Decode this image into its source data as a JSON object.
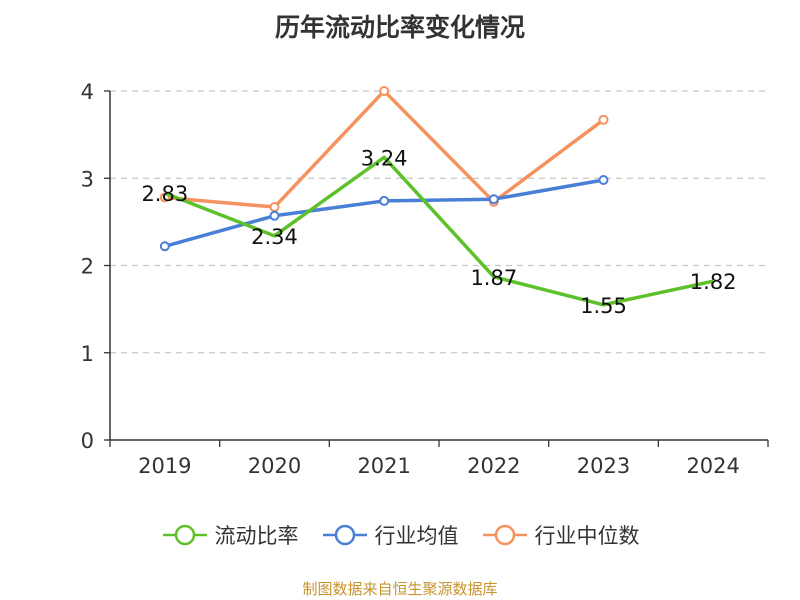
{
  "chart_data": {
    "type": "line",
    "title": "历年流动比率变化情况",
    "categories": [
      "2019",
      "2020",
      "2021",
      "2022",
      "2023",
      "2024"
    ],
    "ylim": [
      0,
      4
    ],
    "yticks": [
      0,
      1,
      2,
      3,
      4
    ],
    "grid": "horizontal dashed",
    "legend": "bottom",
    "series": [
      {
        "name": "流动比率",
        "color": "#5dc12a",
        "values": [
          2.83,
          2.34,
          3.24,
          1.87,
          1.55,
          1.82
        ],
        "labels": [
          "2.83",
          "2.34",
          "3.24",
          "1.87",
          "1.55",
          "1.82"
        ],
        "show_labels": true,
        "show_markers": false
      },
      {
        "name": "行业均值",
        "color": "#4a7fd6",
        "values": [
          2.22,
          2.57,
          2.74,
          2.76,
          2.98,
          null
        ],
        "show_labels": false,
        "show_markers": true
      },
      {
        "name": "行业中位数",
        "color": "#f59260",
        "values": [
          2.78,
          2.67,
          4.0,
          2.73,
          3.67,
          null
        ],
        "show_labels": false,
        "show_markers": true
      }
    ]
  },
  "footer": {
    "source": "制图数据来自恒生聚源数据库"
  }
}
